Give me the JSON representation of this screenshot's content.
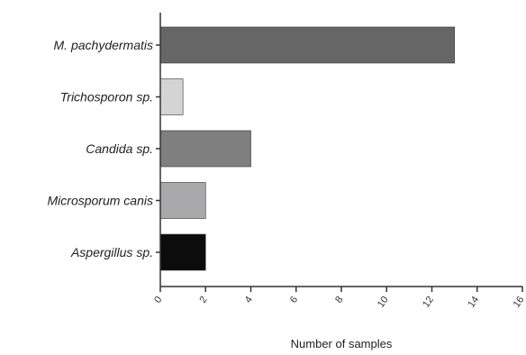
{
  "chart_data": {
    "type": "bar",
    "orientation": "horizontal",
    "categories": [
      "M. pachydermatis",
      "Trichosporon sp.",
      "Candida sp.",
      "Microsporum canis",
      "Aspergillus sp."
    ],
    "values": [
      13,
      1,
      4,
      2,
      2
    ],
    "bar_colors": [
      "#666666",
      "#d4d4d4",
      "#7f7f7f",
      "#a9a9ab",
      "#0c0c0c"
    ],
    "xlabel": "Number of samples",
    "ylabel": "",
    "title": "",
    "xlim": [
      0,
      16
    ],
    "xticks": [
      0,
      2,
      4,
      6,
      8,
      10,
      12,
      14,
      16
    ],
    "grid": false,
    "legend": "none"
  }
}
